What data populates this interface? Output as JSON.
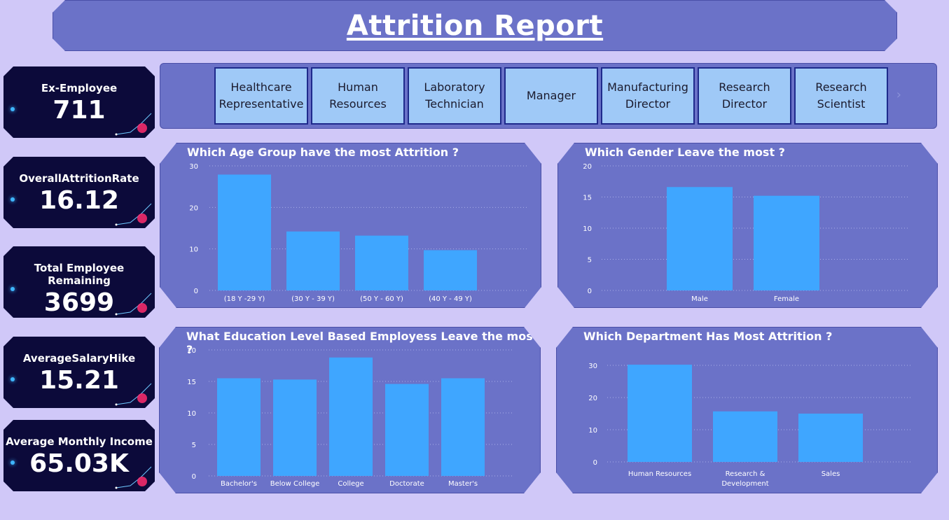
{
  "header": {
    "title": "Attrition Report"
  },
  "kpis": [
    {
      "label": "Ex-Employee",
      "value": "711"
    },
    {
      "label": "OverallAttritionRate",
      "value": "16.12"
    },
    {
      "label": "Total Employee Remaining",
      "value": "3699"
    },
    {
      "label": "AverageSalaryHike",
      "value": "15.21"
    },
    {
      "label": "Average Monthly Income",
      "value": "65.03K"
    }
  ],
  "slicer": {
    "items": [
      "Healthcare Representative",
      "Human Resources",
      "Laboratory Technician",
      "Manager",
      "Manufacturing Director",
      "Research Director",
      "Research Scientist"
    ],
    "scroll_icon": "chevron-right-icon"
  },
  "colors": {
    "bar": "#3fa6ff",
    "panel": "#6b72c8",
    "background": "#d0c8f8",
    "kpi": "#0c0a3a"
  },
  "chart_data": [
    {
      "id": "age",
      "type": "bar",
      "title": "Which Age Group have the most Attrition ?",
      "categories": [
        "(18 Y -29 Y)",
        "(30 Y - 39 Y)",
        "(50 Y - 60 Y)",
        "(40 Y - 49 Y)"
      ],
      "values": [
        27.9,
        14.2,
        13.2,
        9.7
      ],
      "ylim": [
        0,
        30
      ],
      "yticks": [
        0,
        10,
        20,
        30
      ],
      "grid": true
    },
    {
      "id": "gender",
      "type": "bar",
      "title": "Which Gender Leave the most ?",
      "categories": [
        "Male",
        "Female"
      ],
      "values": [
        16.6,
        15.2
      ],
      "ylim": [
        0,
        20
      ],
      "yticks": [
        0,
        5,
        10,
        15,
        20
      ],
      "grid": true
    },
    {
      "id": "education",
      "type": "bar",
      "title": "What Education Level Based Employess Leave the most ?",
      "categories": [
        "Bachelor's",
        "Below College",
        "College",
        "Doctorate",
        "Master's"
      ],
      "values": [
        15.5,
        15.3,
        18.8,
        14.6,
        15.5
      ],
      "ylim": [
        0,
        20
      ],
      "yticks": [
        0,
        5,
        10,
        15,
        20
      ],
      "grid": true
    },
    {
      "id": "department",
      "type": "bar",
      "title": "Which Department Has Most Attrition ?",
      "categories": [
        "Human Resources",
        "Research & Development",
        "Sales"
      ],
      "values": [
        30.2,
        15.7,
        15.0
      ],
      "ylim": [
        0,
        30
      ],
      "yticks": [
        0,
        10,
        20,
        30
      ],
      "grid": true
    }
  ]
}
